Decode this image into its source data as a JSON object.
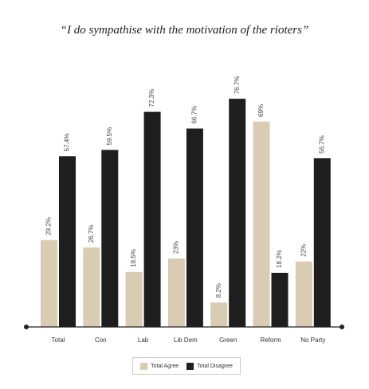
{
  "chart_data": {
    "type": "bar",
    "title": "“I do sympathise with the motivation of the rioters”",
    "categories": [
      "Total",
      "Con",
      "Lab",
      "Lib Dem",
      "Green",
      "Reform",
      "No Party"
    ],
    "series": [
      {
        "name": "Total Agree",
        "color": "#d8cdb2",
        "values": [
          29.2,
          26.7,
          18.5,
          23,
          8.2,
          69,
          22
        ],
        "labels": [
          "29.2%",
          "26.7%",
          "18.5%",
          "23%",
          "8.2%",
          "69%",
          "22%"
        ]
      },
      {
        "name": "Total Disagree",
        "color": "#1e1e1e",
        "values": [
          57.4,
          59.5,
          72.3,
          66.7,
          76.7,
          18.2,
          56.7
        ],
        "labels": [
          "57.4%",
          "59.5%",
          "72.3%",
          "66.7%",
          "76.7%",
          "18.2%",
          "56.7%"
        ]
      }
    ],
    "ylim": [
      0,
      80
    ],
    "grid": false,
    "legend_position": "bottom"
  }
}
